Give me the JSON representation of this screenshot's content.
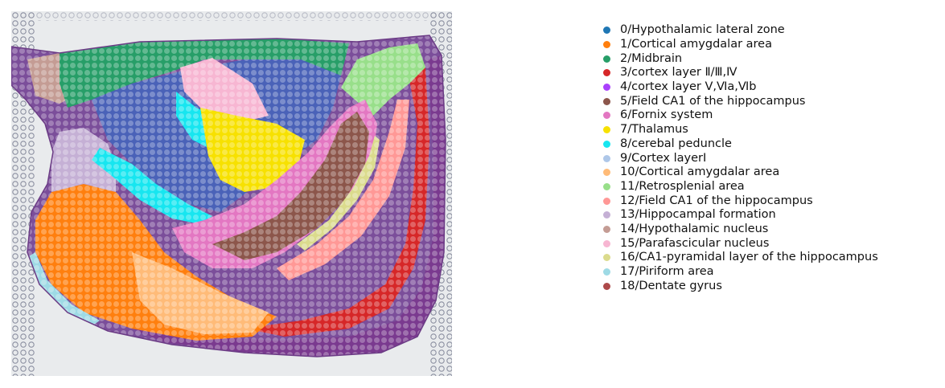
{
  "legend": {
    "items": [
      {
        "label": "0/Hypothalamic lateral zone",
        "color": "#1f77b4"
      },
      {
        "label": "1/Cortical amygdalar area",
        "color": "#ff7f0e"
      },
      {
        "label": "2/Midbrain",
        "color": "#279e68"
      },
      {
        "label": "3/cortex layer Ⅱ/Ⅲ,Ⅳ",
        "color": "#d62728"
      },
      {
        "label": "4/cortex layer Ⅴ,Ⅵa,Ⅵb",
        "color": "#aa40fc"
      },
      {
        "label": "5/Field CA1 of the hippocampus",
        "color": "#8c564b"
      },
      {
        "label": "6/Fornix system",
        "color": "#e377c2"
      },
      {
        "label": "7/Thalamus",
        "color": "#f7e100"
      },
      {
        "label": "8/cerebal peduncle",
        "color": "#17e6f0"
      },
      {
        "label": "9/Cortex layerⅠ",
        "color": "#aec7e8"
      },
      {
        "label": "10/Cortical amygdalar area",
        "color": "#ffbb78"
      },
      {
        "label": "11/Retrosplenial area",
        "color": "#98df8a"
      },
      {
        "label": "12/Field CA1 of the hippocampus",
        "color": "#ff9896"
      },
      {
        "label": "13/Hippocampal formation",
        "color": "#c5b0d5"
      },
      {
        "label": "14/Hypothalamic nucleus",
        "color": "#c49c94"
      },
      {
        "label": "15/Parafascicular nucleus",
        "color": "#f7b6d2"
      },
      {
        "label": "16/CA1-pyramidal layer of the hippocampus",
        "color": "#dbdb8d"
      },
      {
        "label": "17/Piriform area",
        "color": "#9edae5"
      },
      {
        "label": "18/Dentate gyrus",
        "color": "#ad494a"
      }
    ]
  }
}
